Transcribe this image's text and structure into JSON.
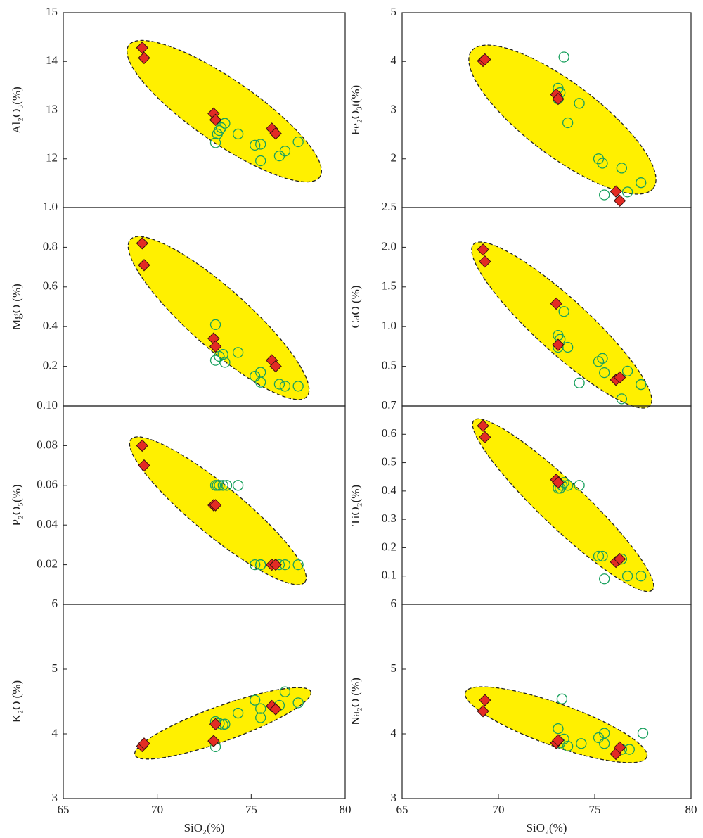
{
  "chart_data": [
    {
      "type": "scatter",
      "ylabel": "Al₂O₃(%)",
      "xlim": [
        65,
        80
      ],
      "ylim": [
        11,
        15
      ],
      "yticks": [
        12,
        13,
        14,
        15
      ],
      "series": [
        {
          "color": "#17a05d",
          "marker": "circle",
          "x": [
            73.1,
            73.2,
            73.3,
            73.4,
            73.6,
            74.3,
            75.2,
            75.5,
            75.5,
            76.5,
            76.8,
            77.5
          ],
          "values": [
            12.33,
            12.51,
            12.58,
            12.64,
            12.73,
            12.51,
            12.28,
            12.3,
            11.96,
            12.06,
            12.16,
            12.35
          ]
        },
        {
          "color": "#e32b24",
          "marker": "diamond",
          "x": [
            69.2,
            69.3,
            73.0,
            73.1,
            76.1,
            76.3
          ],
          "values": [
            14.28,
            14.07,
            12.93,
            12.8,
            12.62,
            12.52
          ]
        }
      ]
    },
    {
      "type": "scatter",
      "ylabel": "Fe₂O₃t(%)",
      "xlim": [
        65,
        80
      ],
      "ylim": [
        1,
        5
      ],
      "yticks": [
        2,
        3,
        4,
        5
      ],
      "series": [
        {
          "color": "#17a05d",
          "marker": "circle",
          "x": [
            73.1,
            73.2,
            73.1,
            73.4,
            73.6,
            74.2,
            75.2,
            75.4,
            75.5,
            76.4,
            76.7,
            77.4
          ],
          "values": [
            3.45,
            3.36,
            3.23,
            4.09,
            2.74,
            3.14,
            2.0,
            1.91,
            1.26,
            1.81,
            1.32,
            1.51
          ]
        },
        {
          "color": "#e32b24",
          "marker": "diamond",
          "x": [
            69.2,
            69.3,
            73.0,
            73.1,
            76.1,
            76.3
          ],
          "values": [
            4.01,
            4.04,
            3.32,
            3.23,
            1.33,
            1.14
          ]
        }
      ]
    },
    {
      "type": "scatter",
      "ylabel": "MgO (%)",
      "xlim": [
        65,
        80
      ],
      "ylim": [
        0,
        1
      ],
      "yticks": [
        0.2,
        0.4,
        0.6,
        0.8,
        {
          "value": 1,
          "label": "1.0"
        }
      ],
      "series": [
        {
          "color": "#17a05d",
          "marker": "circle",
          "x": [
            73.1,
            73.1,
            73.3,
            73.5,
            73.6,
            74.3,
            75.2,
            75.5,
            75.5,
            76.5,
            76.8,
            77.5
          ],
          "values": [
            0.41,
            0.23,
            0.25,
            0.26,
            0.22,
            0.27,
            0.15,
            0.17,
            0.12,
            0.11,
            0.1,
            0.1
          ]
        },
        {
          "color": "#e32b24",
          "marker": "diamond",
          "x": [
            69.2,
            69.3,
            73.0,
            73.1,
            76.1,
            76.3
          ],
          "values": [
            0.82,
            0.71,
            0.34,
            0.3,
            0.23,
            0.2
          ]
        }
      ]
    },
    {
      "type": "scatter",
      "ylabel": "CaO (%)",
      "xlim": [
        65,
        80
      ],
      "ylim": [
        0,
        2.5
      ],
      "yticks": [
        0.5,
        {
          "value": 1,
          "label": "1.0"
        },
        1.5,
        {
          "value": 2,
          "label": "2.0"
        },
        2.5
      ],
      "series": [
        {
          "color": "#17a05d",
          "marker": "circle",
          "x": [
            73.4,
            73.1,
            73.2,
            73.1,
            73.6,
            74.2,
            75.2,
            75.4,
            75.5,
            76.4,
            76.7,
            77.4
          ],
          "values": [
            1.19,
            0.89,
            0.84,
            0.74,
            0.74,
            0.29,
            0.56,
            0.6,
            0.42,
            0.09,
            0.44,
            0.27
          ]
        },
        {
          "color": "#e32b24",
          "marker": "diamond",
          "x": [
            69.2,
            69.3,
            73.0,
            73.1,
            76.1,
            76.3
          ],
          "values": [
            1.97,
            1.82,
            1.29,
            0.77,
            0.33,
            0.36
          ]
        }
      ]
    },
    {
      "type": "scatter",
      "ylabel": "P₂O₅(%)",
      "xlim": [
        65,
        80
      ],
      "ylim": [
        0,
        0.1
      ],
      "yticks": [
        0.02,
        0.04,
        0.06,
        0.08,
        {
          "value": 0.1,
          "label": "0.10"
        }
      ],
      "series": [
        {
          "color": "#17a05d",
          "marker": "circle",
          "x": [
            73.1,
            73.2,
            73.3,
            73.5,
            73.7,
            74.3,
            75.2,
            75.5,
            75.5,
            76.5,
            76.8,
            77.5
          ],
          "values": [
            0.06,
            0.06,
            0.06,
            0.06,
            0.06,
            0.06,
            0.02,
            0.02,
            0.02,
            0.02,
            0.02,
            0.02
          ]
        },
        {
          "color": "#e32b24",
          "marker": "diamond",
          "x": [
            69.2,
            69.3,
            73.0,
            73.1,
            76.1,
            76.3
          ],
          "values": [
            0.08,
            0.07,
            0.05,
            0.05,
            0.02,
            0.02
          ]
        }
      ]
    },
    {
      "type": "scatter",
      "ylabel": "TiO₂(%)",
      "xlim": [
        65,
        80
      ],
      "ylim": [
        0,
        0.7
      ],
      "yticks": [
        0.1,
        0.2,
        0.3,
        0.4,
        0.5,
        0.6,
        0.7
      ],
      "series": [
        {
          "color": "#17a05d",
          "marker": "circle",
          "x": [
            73.1,
            73.2,
            73.3,
            73.4,
            73.6,
            74.2,
            75.2,
            75.4,
            75.5,
            76.4,
            76.7,
            77.4
          ],
          "values": [
            0.41,
            0.41,
            0.42,
            0.43,
            0.42,
            0.42,
            0.17,
            0.17,
            0.09,
            0.16,
            0.1,
            0.1
          ]
        },
        {
          "color": "#e32b24",
          "marker": "diamond",
          "x": [
            69.2,
            69.3,
            73.0,
            73.1,
            76.1,
            76.3
          ],
          "values": [
            0.63,
            0.59,
            0.44,
            0.43,
            0.15,
            0.16
          ]
        }
      ]
    },
    {
      "type": "scatter",
      "ylabel": "K₂O (%)",
      "xlabel": "SiO₂(%)",
      "xlim": [
        65,
        80
      ],
      "xticks": [
        65,
        70,
        75,
        80
      ],
      "ylim": [
        3,
        6
      ],
      "yticks": [
        3,
        4,
        5,
        6
      ],
      "series": [
        {
          "color": "#17a05d",
          "marker": "circle",
          "x": [
            73.1,
            73.1,
            73.3,
            73.5,
            73.6,
            74.3,
            75.2,
            75.5,
            75.5,
            76.5,
            76.8,
            77.5
          ],
          "values": [
            3.8,
            4.19,
            4.16,
            4.14,
            4.15,
            4.32,
            4.52,
            4.25,
            4.39,
            4.44,
            4.65,
            4.48
          ]
        },
        {
          "color": "#e32b24",
          "marker": "diamond",
          "x": [
            69.2,
            69.3,
            73.0,
            73.1,
            76.1,
            76.3
          ],
          "values": [
            3.81,
            3.85,
            3.89,
            4.15,
            4.43,
            4.38
          ]
        }
      ]
    },
    {
      "type": "scatter",
      "ylabel": "Na₂O (%)",
      "xlabel": "SiO₂(%)",
      "xlim": [
        65,
        80
      ],
      "xticks": [
        65,
        70,
        75,
        80
      ],
      "ylim": [
        3,
        6
      ],
      "yticks": [
        3,
        4,
        5,
        6
      ],
      "series": [
        {
          "color": "#17a05d",
          "marker": "circle",
          "x": [
            73.3,
            73.1,
            73.2,
            73.4,
            73.6,
            74.3,
            75.2,
            75.5,
            75.5,
            76.4,
            76.8,
            77.5
          ],
          "values": [
            4.54,
            4.08,
            3.86,
            3.92,
            3.81,
            3.85,
            3.94,
            4.01,
            3.85,
            3.76,
            3.76,
            4.01
          ]
        },
        {
          "color": "#e32b24",
          "marker": "diamond",
          "x": [
            69.2,
            69.3,
            73.0,
            73.1,
            76.1,
            76.3
          ],
          "values": [
            4.35,
            4.52,
            3.86,
            3.9,
            3.69,
            3.79
          ]
        }
      ]
    }
  ]
}
